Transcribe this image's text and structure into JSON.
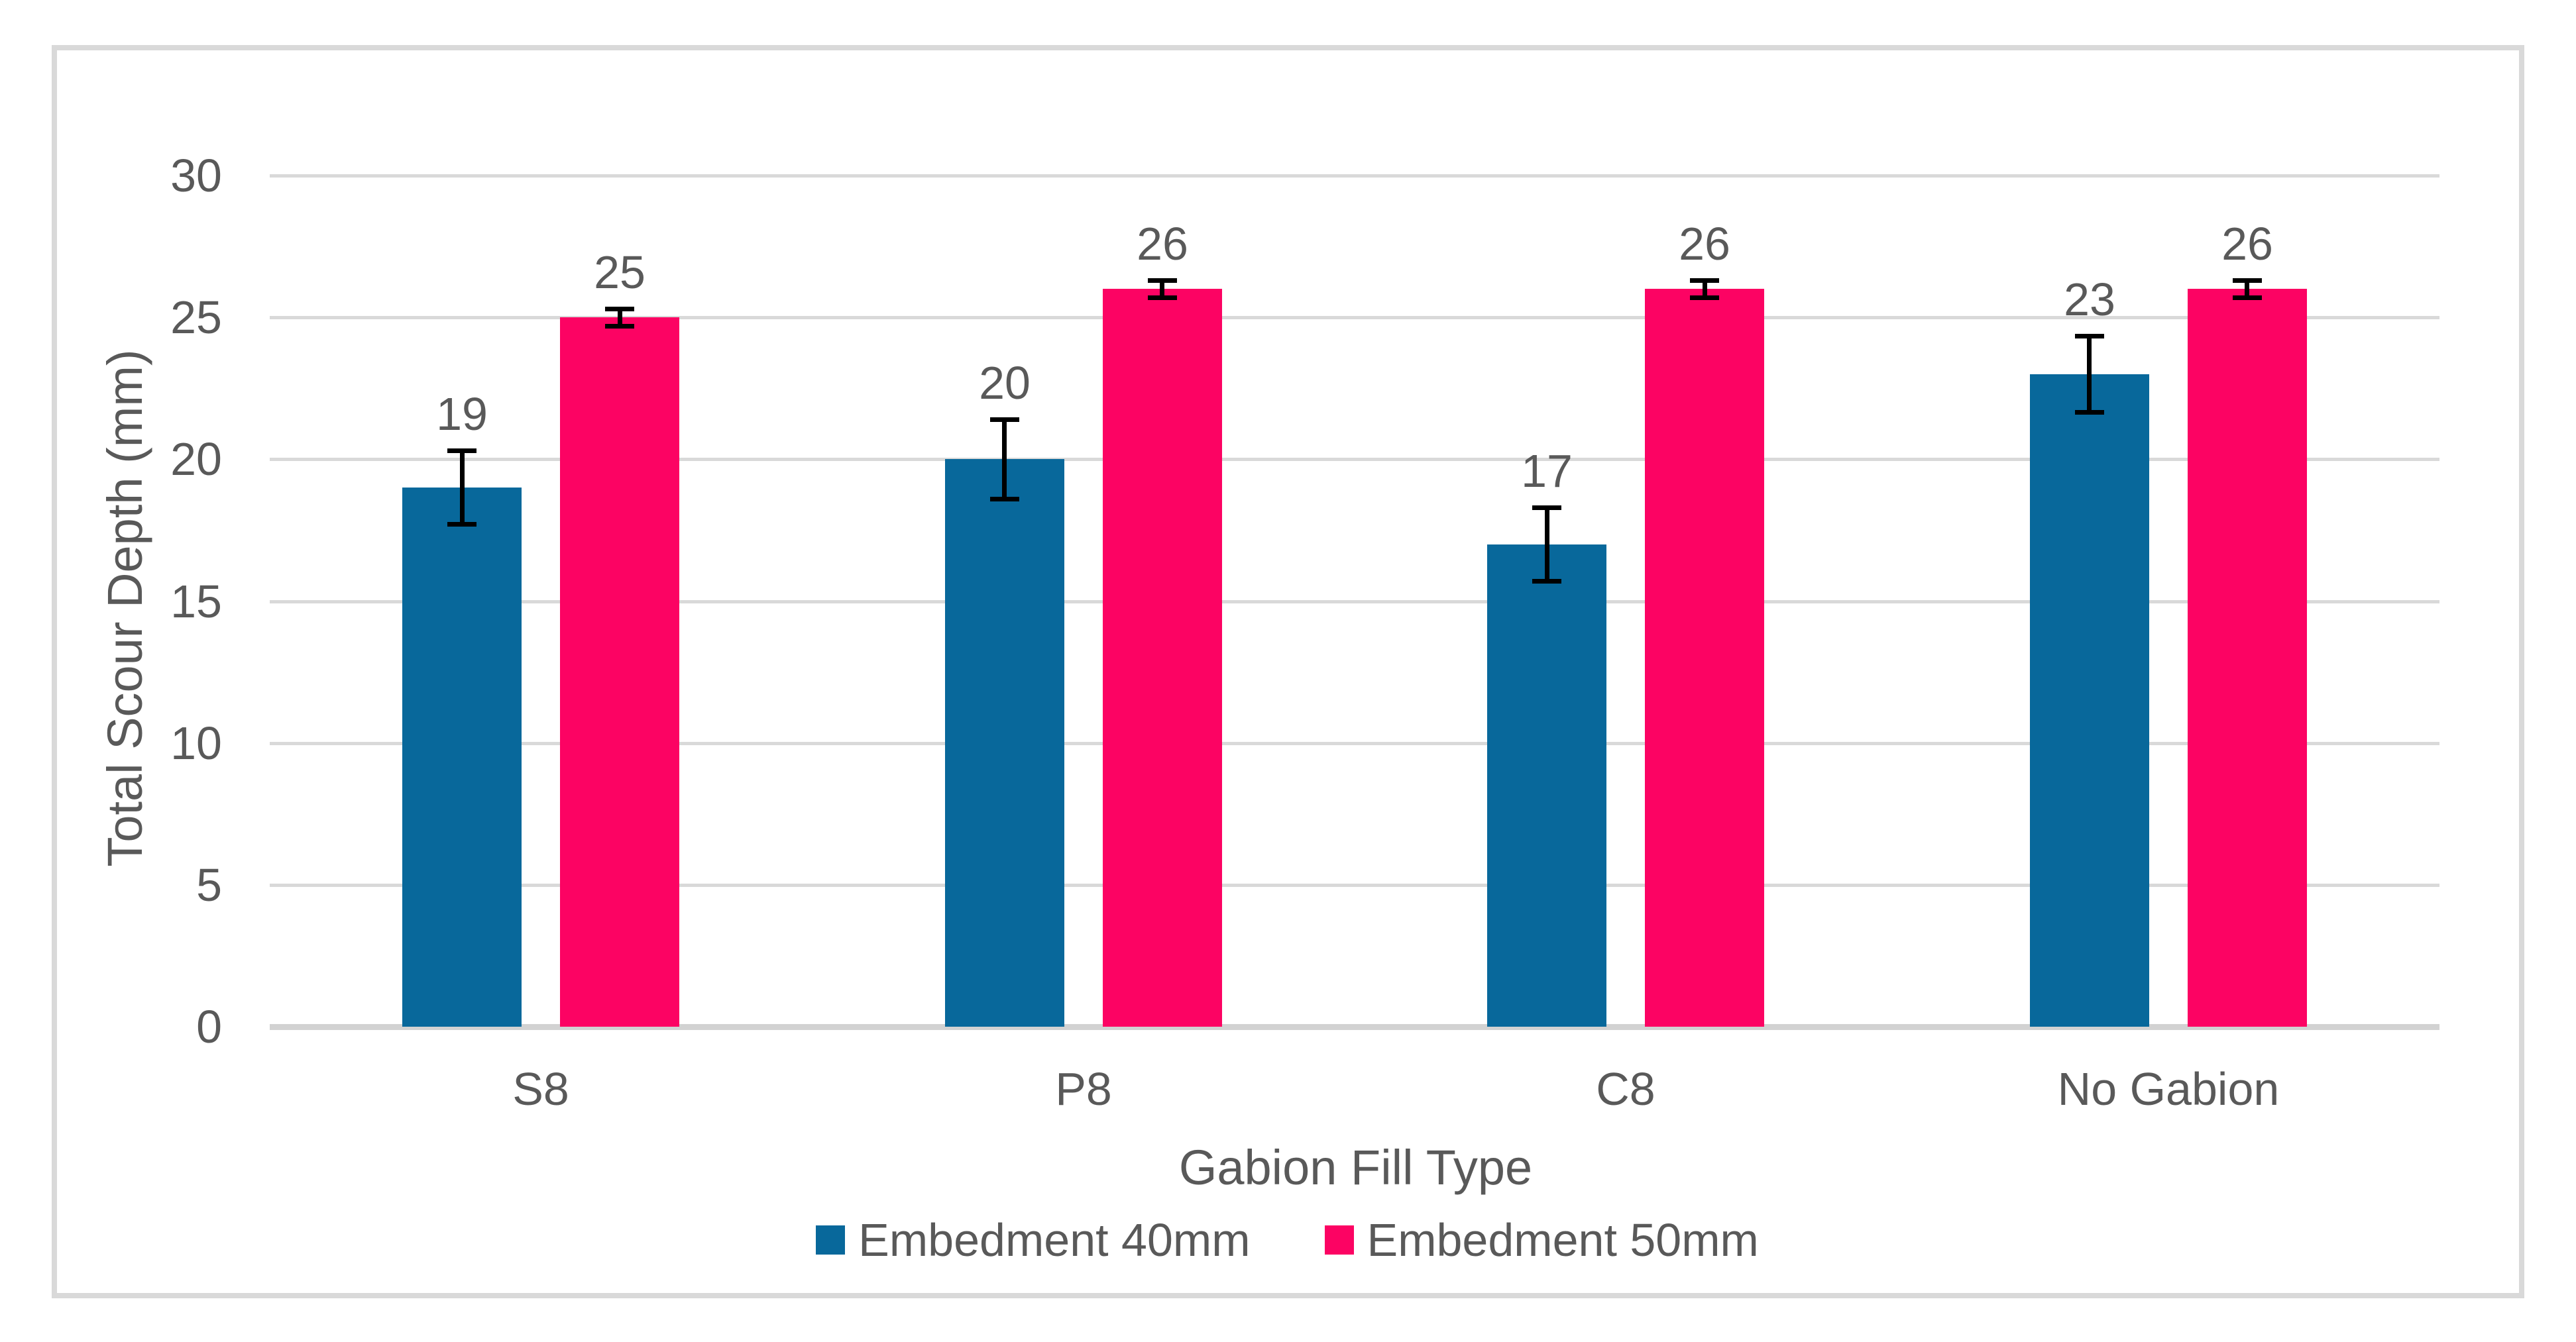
{
  "chart_data": {
    "type": "bar",
    "title": "",
    "xlabel": "Gabion Fill Type",
    "ylabel": "Total Scour Depth (mm)",
    "categories": [
      "S8",
      "P8",
      "C8",
      "No Gabion"
    ],
    "series": [
      {
        "name": "Embedment 40mm",
        "color": "#08689B",
        "values": [
          19,
          20,
          17,
          23
        ],
        "errors": [
          1.3,
          1.4,
          1.3,
          1.35
        ]
      },
      {
        "name": "Embedment 50mm",
        "color": "#FC0363",
        "values": [
          25,
          26,
          26,
          26
        ],
        "errors": [
          0.3,
          0.3,
          0.3,
          0.3
        ]
      }
    ],
    "data_labels": [
      [
        "19",
        "20",
        "17",
        "23"
      ],
      [
        "25",
        "26",
        "26",
        "26"
      ]
    ],
    "ylim": [
      0,
      30
    ],
    "ytick_step": 5,
    "yticks": [
      "0",
      "5",
      "10",
      "15",
      "20",
      "25",
      "30"
    ],
    "grid": true,
    "legend_position": "bottom",
    "error_bar_color": "#000000",
    "grid_color": "#D9D9D9",
    "text_color": "#595959",
    "frame_border_color": "#D9D9D9",
    "background_color": "#FFFFFF"
  }
}
